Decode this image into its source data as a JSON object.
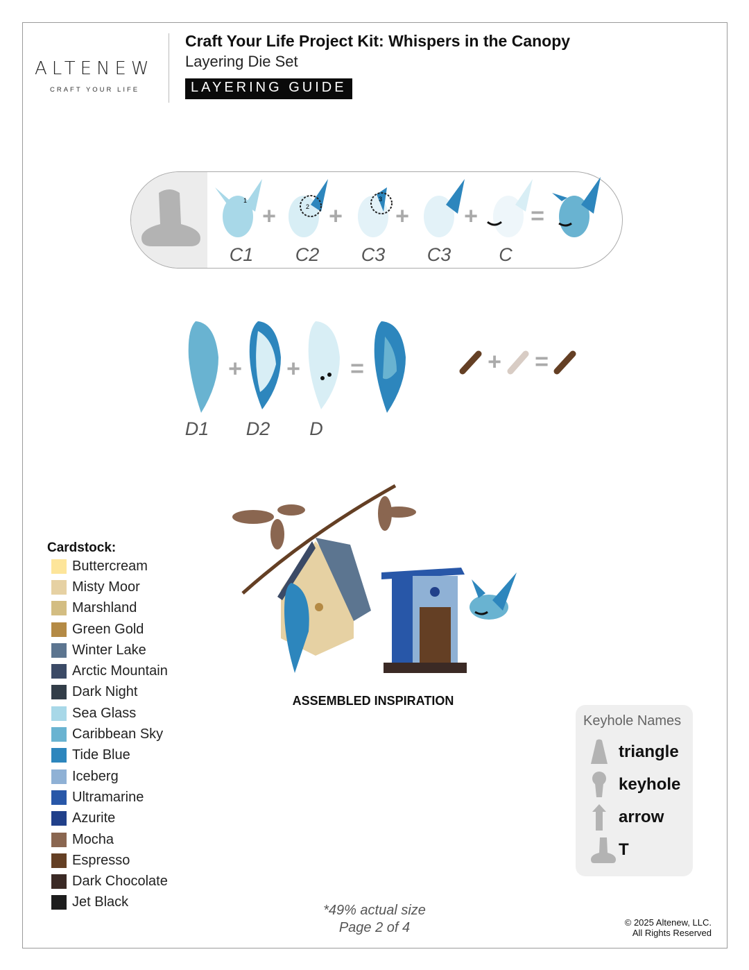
{
  "brand": {
    "name": "ALTENEW",
    "tagline": "CRAFT YOUR LIFE"
  },
  "header": {
    "title": "Craft Your Life Project Kit: Whispers in the Canopy",
    "subtitle": "Layering Die Set",
    "badge": "LAYERING GUIDE"
  },
  "row1": {
    "labels": [
      "C1",
      "C2",
      "C3",
      "C3",
      "C"
    ],
    "layer_numbers": [
      "1",
      "2",
      "3"
    ]
  },
  "row2": {
    "labels": [
      "D1",
      "D2",
      "D"
    ]
  },
  "operators": {
    "plus": "+",
    "equals": "="
  },
  "assembled_caption": "ASSEMBLED INSPIRATION",
  "cardstock": {
    "title": "Cardstock:",
    "items": [
      {
        "name": "Buttercream",
        "color": "#fde59a"
      },
      {
        "name": "Misty Moor",
        "color": "#e6d1a3"
      },
      {
        "name": "Marshland",
        "color": "#d3bd82"
      },
      {
        "name": "Green Gold",
        "color": "#b48a45"
      },
      {
        "name": "Winter Lake",
        "color": "#5c7590"
      },
      {
        "name": "Arctic Mountain",
        "color": "#3b4a66"
      },
      {
        "name": "Dark Night",
        "color": "#323d48"
      },
      {
        "name": "Sea Glass",
        "color": "#a8d8e8"
      },
      {
        "name": "Caribbean Sky",
        "color": "#69b3d1"
      },
      {
        "name": "Tide Blue",
        "color": "#2d86bd"
      },
      {
        "name": "Iceberg",
        "color": "#8fb1d5"
      },
      {
        "name": "Ultramarine",
        "color": "#2857a8"
      },
      {
        "name": "Azurite",
        "color": "#21408a"
      },
      {
        "name": "Mocha",
        "color": "#8a6650"
      },
      {
        "name": "Espresso",
        "color": "#643f24"
      },
      {
        "name": "Dark Chocolate",
        "color": "#3b2a25"
      },
      {
        "name": "Jet Black",
        "color": "#1d1d1d"
      }
    ]
  },
  "keyhole": {
    "title": "Keyhole Names",
    "items": [
      "triangle",
      "keyhole",
      "arrow",
      "T"
    ]
  },
  "footer": {
    "scale_note": "*49% actual size",
    "page": "Page 2 of 4",
    "copyright": "© 2025 Altenew, LLC.",
    "rights": "All Rights Reserved"
  }
}
